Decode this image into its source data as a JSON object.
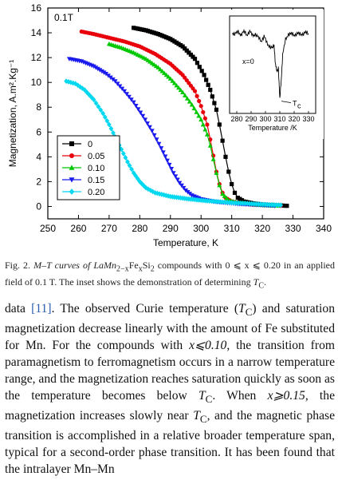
{
  "figure": {
    "field_label": "0.1T",
    "chart_data": {
      "type": "scatter",
      "xlabel": "Temperature, K",
      "ylabel": "Magnetization, A.m².Kg⁻¹",
      "xlim": [
        250,
        340
      ],
      "ylim": [
        -1,
        16
      ],
      "xticks": [
        250,
        260,
        270,
        280,
        290,
        300,
        310,
        320,
        330,
        340
      ],
      "yticks": [
        0,
        2,
        4,
        6,
        8,
        10,
        12,
        14,
        16
      ],
      "legend_position": "lower-left",
      "series": [
        {
          "name": "0",
          "color": "#000000",
          "marker": "square",
          "x": [
            278,
            282,
            286,
            290,
            294,
            298,
            301,
            303,
            305,
            306,
            307,
            308,
            309,
            310,
            311,
            312,
            314,
            317,
            320,
            324,
            328
          ],
          "y": [
            14.4,
            14.2,
            13.9,
            13.5,
            12.9,
            11.9,
            10.6,
            9.4,
            7.8,
            6.6,
            5.3,
            4.0,
            2.8,
            1.8,
            1.1,
            0.7,
            0.4,
            0.25,
            0.15,
            0.1,
            0.05
          ]
        },
        {
          "name": "0.05",
          "color": "#e8000b",
          "marker": "circle",
          "x": [
            261,
            265,
            270,
            275,
            280,
            285,
            290,
            294,
            298,
            300,
            302,
            303,
            304,
            305,
            306,
            307,
            308,
            310,
            313,
            317,
            322,
            326
          ],
          "y": [
            14.1,
            13.9,
            13.6,
            13.3,
            12.9,
            12.3,
            11.5,
            10.6,
            9.3,
            8.1,
            6.6,
            5.4,
            4.1,
            2.8,
            1.8,
            1.1,
            0.7,
            0.4,
            0.25,
            0.15,
            0.1,
            0.05
          ]
        },
        {
          "name": "0.10",
          "color": "#00c800",
          "marker": "triangle",
          "x": [
            270,
            274,
            278,
            282,
            286,
            290,
            294,
            297,
            300,
            302,
            303,
            304,
            305,
            306,
            307,
            309,
            312,
            316,
            320,
            325
          ],
          "y": [
            13.1,
            12.8,
            12.4,
            11.9,
            11.2,
            10.3,
            9.2,
            8.2,
            7.0,
            5.8,
            4.9,
            3.8,
            2.7,
            1.7,
            1.0,
            0.5,
            0.3,
            0.2,
            0.1,
            0.05
          ]
        },
        {
          "name": "0.15",
          "color": "#1a1aee",
          "marker": "triangle-down",
          "x": [
            257,
            261,
            265,
            269,
            272,
            275,
            278,
            281,
            284,
            287,
            289,
            291,
            293,
            295,
            297,
            300,
            304,
            308,
            312,
            316,
            320,
            324
          ],
          "y": [
            11.9,
            11.7,
            11.3,
            10.7,
            10.1,
            9.3,
            8.4,
            7.3,
            6.1,
            4.7,
            3.7,
            2.7,
            1.9,
            1.3,
            0.9,
            0.6,
            0.4,
            0.3,
            0.2,
            0.15,
            0.1,
            0.05
          ]
        },
        {
          "name": "0.20",
          "color": "#00d8f0",
          "marker": "diamond",
          "x": [
            256,
            259,
            262,
            265,
            268,
            270,
            272,
            274,
            276,
            278,
            280,
            282,
            285,
            290,
            296,
            302,
            310,
            318,
            326
          ],
          "y": [
            10.1,
            9.9,
            9.4,
            8.6,
            7.5,
            6.6,
            5.6,
            4.6,
            3.6,
            2.7,
            2.0,
            1.5,
            1.1,
            0.8,
            0.6,
            0.45,
            0.3,
            0.2,
            0.1
          ]
        }
      ]
    },
    "inset": {
      "xlabel": "Temperature /K",
      "xlim": [
        275,
        335
      ],
      "xticks": [
        280,
        290,
        300,
        310,
        320,
        330
      ],
      "annotation": "x=0",
      "tc_label": "T",
      "tc_sub": "c",
      "tc_value": 310,
      "color": "#000000",
      "x": [
        277,
        279,
        281,
        283,
        285,
        287,
        289,
        291,
        293,
        295,
        297,
        299,
        301,
        303,
        305,
        306,
        307,
        308,
        309,
        310,
        311,
        312,
        314,
        316,
        318,
        320,
        322,
        324,
        326,
        328,
        330
      ],
      "y": [
        0.08,
        0.05,
        0.1,
        0.02,
        0.12,
        0.0,
        0.15,
        -0.05,
        0.05,
        -0.12,
        -0.25,
        -0.05,
        -0.35,
        -0.45,
        -0.55,
        -0.4,
        -1.2,
        -1.5,
        -1.3,
        -2.6,
        -1.8,
        -0.8,
        -0.2,
        0.05,
        0.02,
        0.0,
        0.05,
        0.02,
        0.05,
        0.08,
        0.05
      ]
    }
  },
  "caption": {
    "fig_label": "Fig. 2.",
    "text_before": " M–T curves of LaMn",
    "sub1": "2−x",
    "text_mid1": "Fe",
    "sub2": "x",
    "text_mid2": "Si",
    "sub3": "2",
    "text_after": " compounds with 0 ⩽ x ⩽ 0.20 in an applied field of 0.1 T. The inset shows the demonstration of determining ",
    "tc": "T",
    "tc_sub": "C",
    "end": "."
  },
  "body_text": {
    "p1_start": "data ",
    "ref": "[11]",
    "p1_a": ". The observed Curie temperature (",
    "tc_a": "T",
    "tc_a_sub": "C",
    "p1_b": ") and saturation magnetization decrease linearly with the amount of Fe substituted for Mn. For the compounds with ",
    "cond1": "x⩽0.10",
    "p1_c": ", the transition from paramagnetism to ferromagnetism occurs in a narrow temperature range, and the magnetization reaches saturation quickly as soon as the temperature becomes below ",
    "tc_b": "T",
    "tc_b_sub": "C",
    "p1_d": ". When ",
    "cond2": "x⩾0.15",
    "p1_e": ", the magnetization increases slowly near ",
    "tc_c": "T",
    "tc_c_sub": "C",
    "p1_f": ", and the magnetic phase transition is accomplished in a relative broader temperature span, typical for a second-order phase transition. It has been found that the intralayer Mn–Mn"
  }
}
